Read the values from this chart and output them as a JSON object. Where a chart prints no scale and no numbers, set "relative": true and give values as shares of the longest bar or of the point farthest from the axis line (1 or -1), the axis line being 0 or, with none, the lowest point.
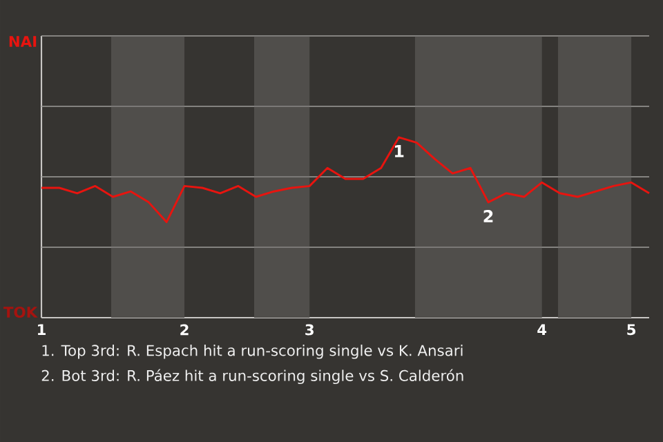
{
  "chart_data": {
    "type": "line",
    "relative": true,
    "categories": [
      "1",
      null,
      null,
      null,
      null,
      null,
      null,
      null,
      "2",
      null,
      null,
      null,
      null,
      null,
      null,
      "3",
      null,
      null,
      null,
      null,
      null,
      null,
      null,
      null,
      null,
      null,
      null,
      null,
      "4",
      null,
      null,
      null,
      null,
      "5",
      null
    ],
    "series": [
      {
        "color": "#e8140f",
        "values": [
          0.72,
          0.72,
          0.69,
          0.73,
          0.67,
          0.7,
          0.64,
          0.53,
          0.73,
          0.72,
          0.69,
          0.73,
          0.67,
          0.7,
          0.72,
          0.73,
          0.83,
          0.77,
          0.77,
          0.83,
          1,
          0.97,
          0.88,
          0.8,
          0.83,
          0.64,
          0.69,
          0.67,
          0.75,
          0.69,
          0.67,
          0.7,
          0.73,
          0.75,
          0.69
        ]
      }
    ],
    "grid": "y",
    "annotations": [
      {
        "text": "1",
        "y": 1
      },
      {
        "text": "2",
        "y": 0.64
      },
      "NAI",
      "TOK",
      "1. Top 3rd: R. Espach hit a run-scoring single vs K. Ansari",
      "2. Bot 3rd: R. Páez hit a run-scoring single vs S. Calderón"
    ]
  }
}
